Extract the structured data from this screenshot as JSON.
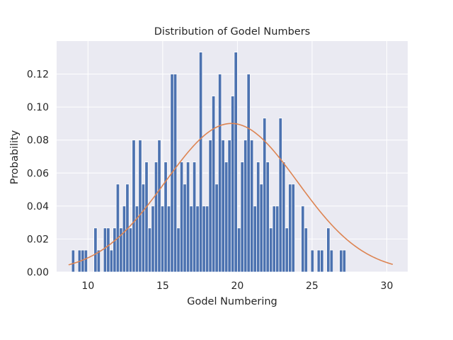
{
  "chart_data": {
    "type": "bar",
    "title": "Distribution of Godel Numbers",
    "xlabel": "Godel Numbering",
    "ylabel": "Probability",
    "xlim": [
      7.9,
      31.4
    ],
    "ylim": [
      0,
      0.14
    ],
    "x_ticks": [
      10,
      15,
      20,
      25,
      30
    ],
    "y_ticks": [
      0.0,
      0.02,
      0.04,
      0.06,
      0.08,
      0.1,
      0.12
    ],
    "x_tick_labels": [
      "10",
      "15",
      "20",
      "25",
      "30"
    ],
    "y_tick_labels": [
      "0.00",
      "0.02",
      "0.04",
      "0.06",
      "0.08",
      "0.10",
      "0.12"
    ],
    "grid": true,
    "bin_start": 8.9,
    "bin_width": 0.2135,
    "bar_color": "#4c72b0",
    "curve_color": "#dd8452",
    "background_color": "#eaeaf2",
    "series": [
      {
        "type": "histogram",
        "values": [
          0.0133,
          0,
          0.0133,
          0.0133,
          0.0133,
          0,
          0,
          0.0267,
          0.0133,
          0,
          0.0267,
          0.0267,
          0.0133,
          0.0267,
          0.0533,
          0.0267,
          0.04,
          0.0533,
          0.0267,
          0.08,
          0.04,
          0.08,
          0.0533,
          0.0667,
          0.0267,
          0.04,
          0.0667,
          0.08,
          0.04,
          0.0667,
          0.04,
          0.12,
          0.12,
          0.0267,
          0.0667,
          0.0533,
          0.0667,
          0.04,
          0.0667,
          0.04,
          0.1333,
          0.04,
          0.04,
          0.08,
          0.1067,
          0.0533,
          0.12,
          0.08,
          0.0667,
          0.08,
          0.1067,
          0.1333,
          0.0267,
          0.0667,
          0.08,
          0.12,
          0.08,
          0.04,
          0.0667,
          0.0533,
          0.0933,
          0.0667,
          0.0267,
          0.04,
          0.04,
          0.0933,
          0.0667,
          0.0267,
          0.0533,
          0.0533,
          0,
          0,
          0.04,
          0.0267,
          0,
          0.0133,
          0,
          0.0133,
          0.0133,
          0,
          0.0267,
          0.0133,
          0,
          0,
          0.0133,
          0.0133
        ]
      },
      {
        "type": "line",
        "mean": 19.6,
        "std": 4.43,
        "x_range": [
          8.7,
          30.4
        ]
      }
    ]
  }
}
